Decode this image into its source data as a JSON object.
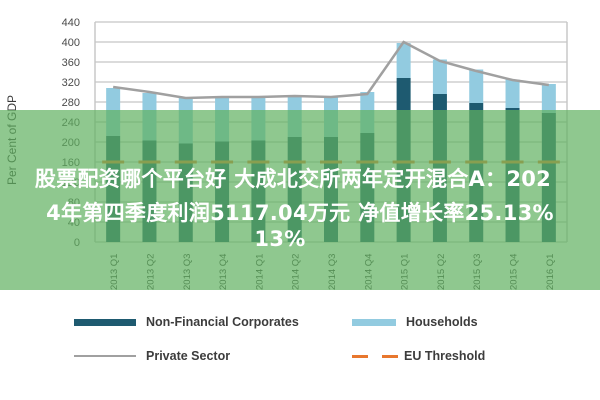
{
  "chart_data": {
    "type": "bar",
    "stacked": true,
    "title": "",
    "xlabel": "",
    "ylabel": "Per Cent of GDP",
    "ylim": [
      0,
      440
    ],
    "yticks": [
      0,
      40,
      80,
      120,
      160,
      200,
      240,
      280,
      320,
      360,
      400,
      440
    ],
    "grid": true,
    "legend_position": "bottom",
    "categories": [
      "2013 Q1",
      "2013 Q2",
      "2013 Q3",
      "2013 Q4",
      "2014 Q1",
      "2014 Q2",
      "2014 Q3",
      "2014 Q4",
      "2015 Q1",
      "2015 Q2",
      "2015 Q3",
      "2015 Q4",
      "2016 Q1"
    ],
    "series": [
      {
        "name": "Non-Financial Corporates",
        "kind": "bar",
        "color": "#1e5a70",
        "values": [
          212,
          203,
          197,
          201,
          203,
          210,
          210,
          218,
          328,
          296,
          278,
          268,
          258
        ]
      },
      {
        "name": "Households",
        "kind": "bar",
        "color": "#92cbe0",
        "values": [
          96,
          95,
          93,
          91,
          89,
          84,
          82,
          82,
          70,
          69,
          67,
          57,
          58
        ]
      },
      {
        "name": "Private Sector",
        "kind": "line",
        "color": "#a0a0a0",
        "values": [
          310,
          300,
          288,
          290,
          290,
          292,
          290,
          296,
          400,
          362,
          342,
          324,
          314
        ]
      },
      {
        "name": "EU Threshold",
        "kind": "dashed-line",
        "color": "#e8772e",
        "values": [
          160,
          160,
          160,
          160,
          160,
          160,
          160,
          160,
          160,
          160,
          160,
          160,
          160
        ]
      }
    ]
  },
  "overlay": {
    "headline_line1": "股票配资哪个平台好 大成北交所两年定开混合A：202",
    "headline_line2": "4年第四季度利润5117.04万元 净值增长率25.13%",
    "headline_line3": "13%"
  },
  "legend": {
    "items": [
      {
        "label": "Non-Financial Corporates"
      },
      {
        "label": "Households"
      },
      {
        "label": "Private Sector"
      },
      {
        "label": "EU Threshold"
      }
    ]
  }
}
